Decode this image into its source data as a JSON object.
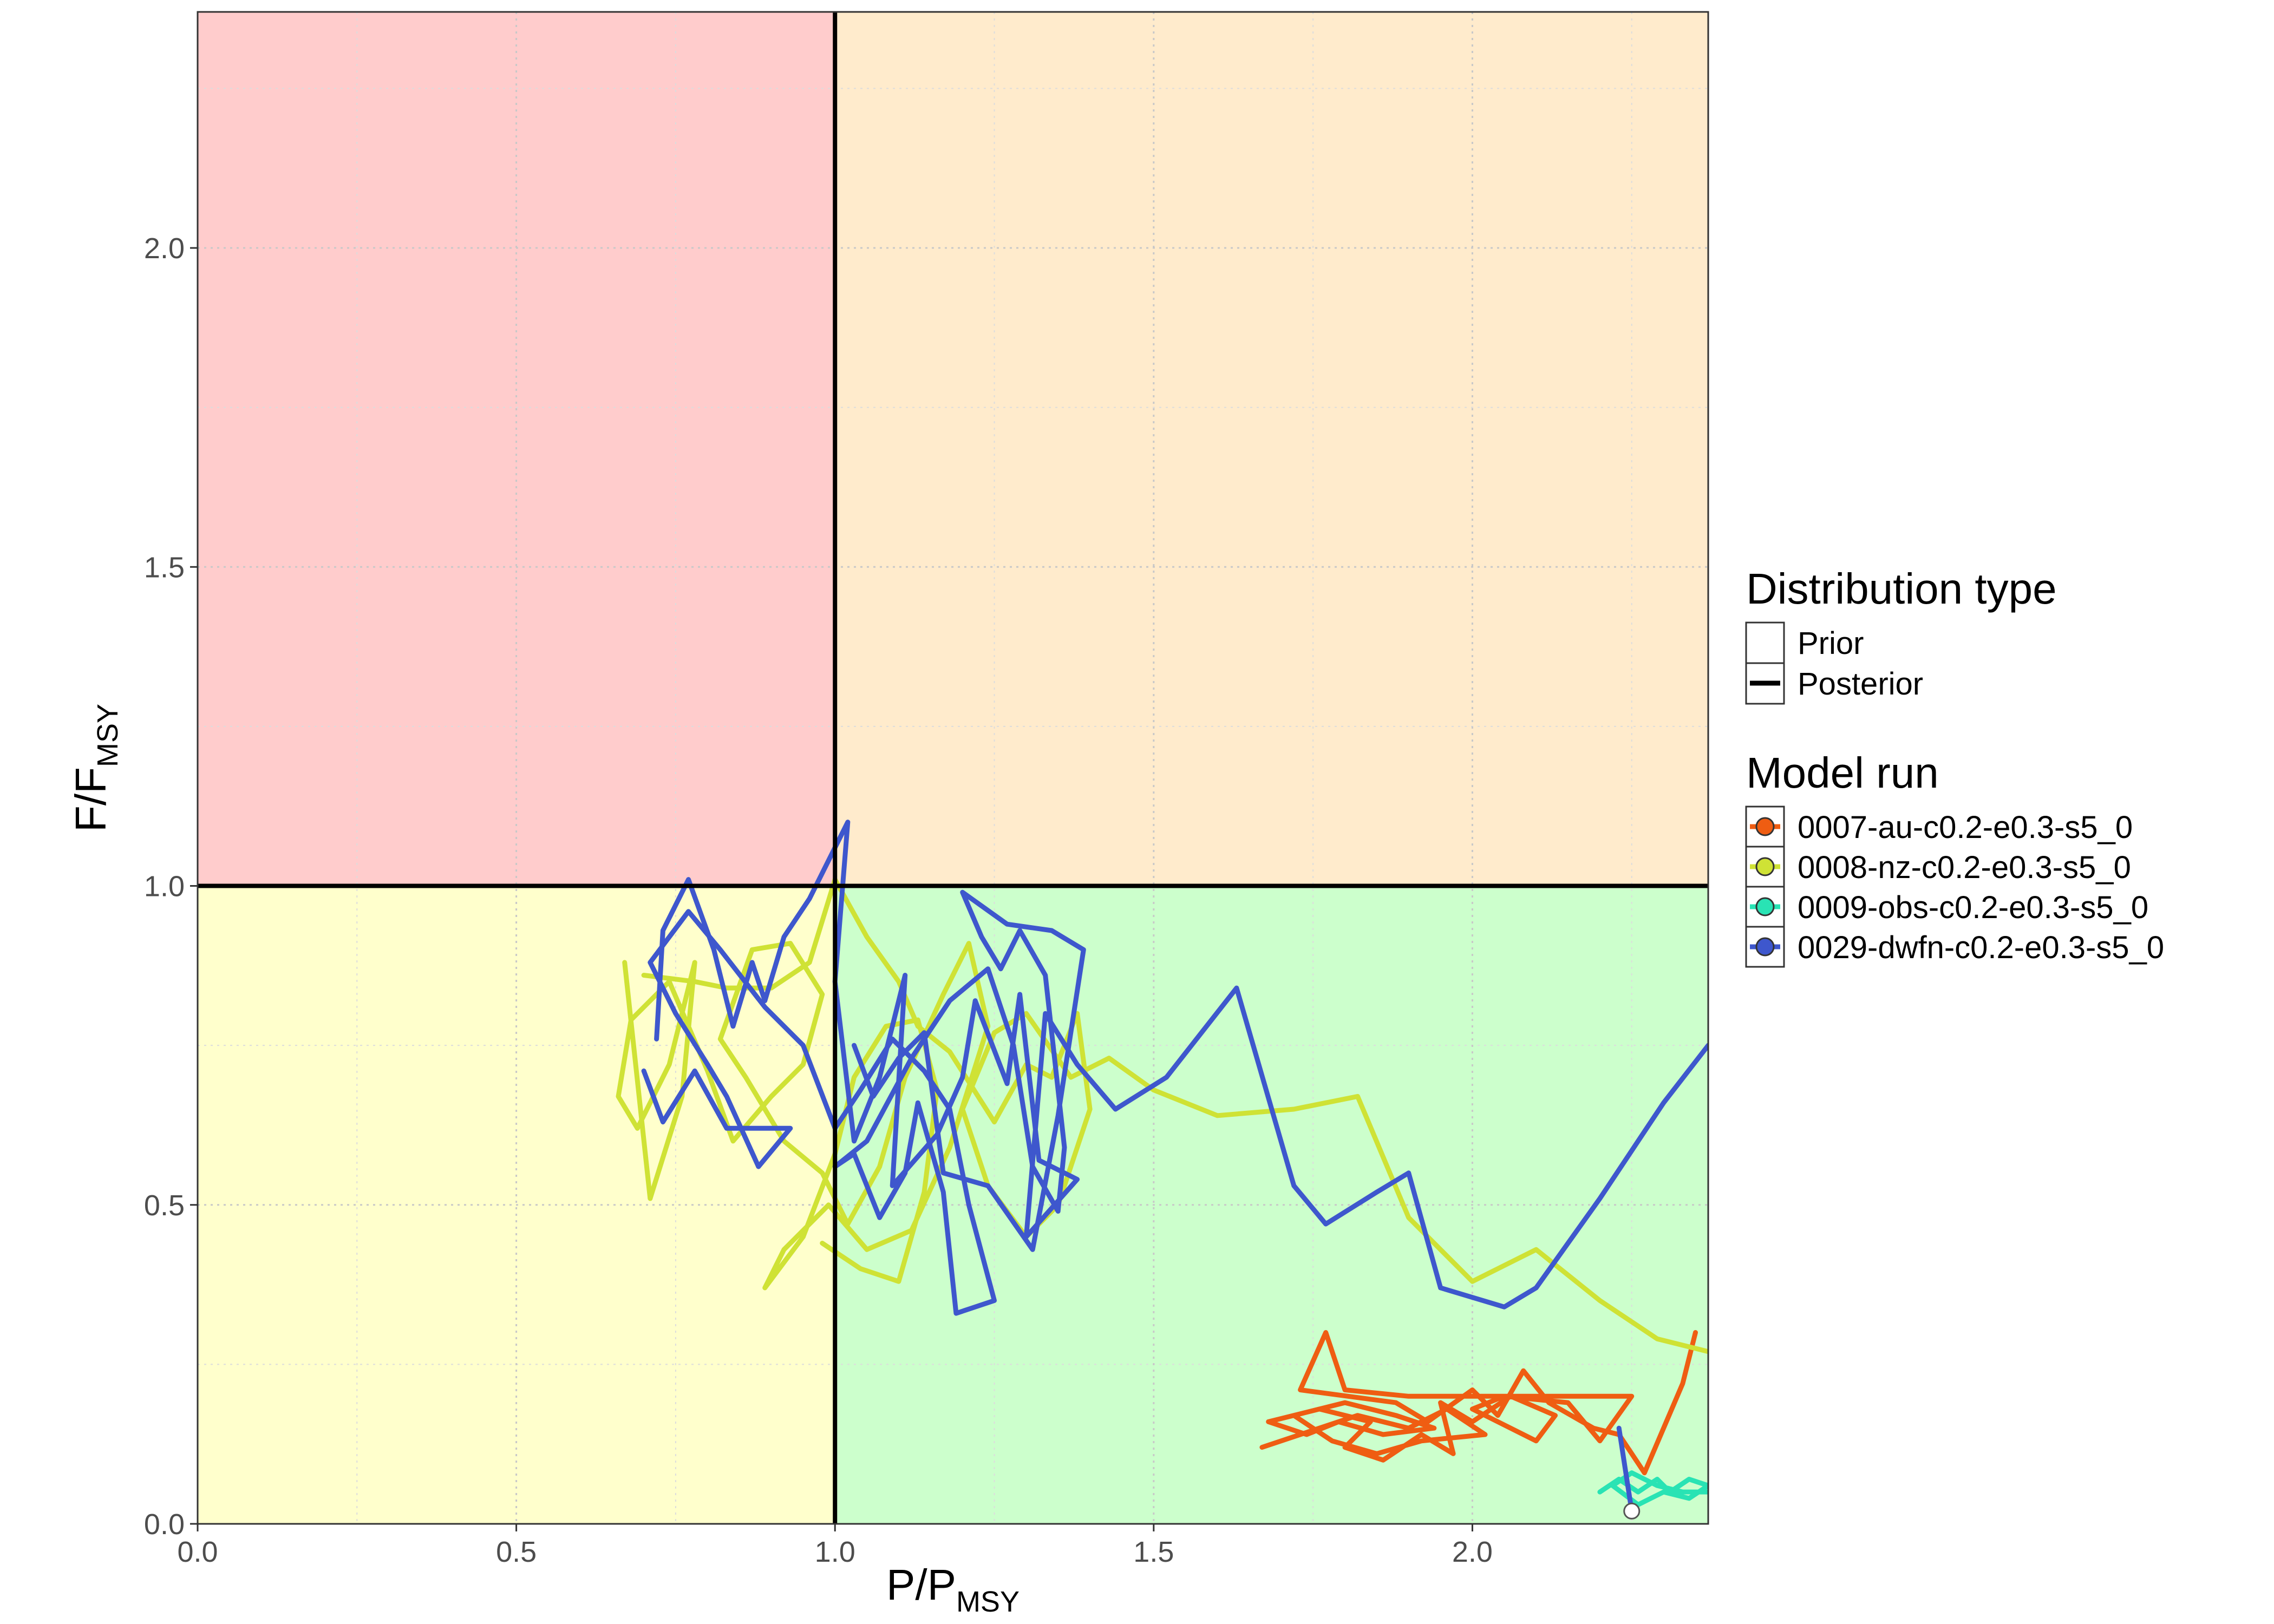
{
  "chart_data": {
    "type": "line",
    "title": "",
    "xlabel": {
      "main": "P",
      "sep": "/",
      "base": "P",
      "sub": "MSY"
    },
    "ylabel": {
      "main": "F",
      "sep": "/",
      "base": "F",
      "sub": "MSY"
    },
    "xlim": [
      0,
      2.37
    ],
    "ylim": [
      0,
      2.37
    ],
    "xticks": [
      0.0,
      0.5,
      1.0,
      1.5,
      2.0
    ],
    "yticks": [
      0.0,
      0.5,
      1.0,
      1.5,
      2.0
    ],
    "xtick_labels": [
      "0.0",
      "0.5",
      "1.0",
      "1.5",
      "2.0"
    ],
    "ytick_labels": [
      "0.0",
      "0.5",
      "1.0",
      "1.5",
      "2.0"
    ],
    "grid": true,
    "reference_lines": {
      "x": 1.0,
      "y": 1.0
    },
    "quadrants": [
      {
        "name": "overfished-overfishing",
        "x": [
          0,
          1
        ],
        "y": [
          1,
          2.37
        ],
        "color": "#ffcccc"
      },
      {
        "name": "overfishing",
        "x": [
          1,
          2.37
        ],
        "y": [
          1,
          2.37
        ],
        "color": "#ffebcc"
      },
      {
        "name": "overfished",
        "x": [
          0,
          1
        ],
        "y": [
          0,
          1
        ],
        "color": "#ffffcc"
      },
      {
        "name": "sustainable",
        "x": [
          1,
          2.37
        ],
        "y": [
          0,
          1
        ],
        "color": "#ccffcc"
      }
    ],
    "legend": {
      "position": "right",
      "distribution_title": "Distribution type",
      "distribution_items": [
        {
          "label": "Prior",
          "style": "thin"
        },
        {
          "label": "Posterior",
          "style": "thick"
        }
      ],
      "model_title": "Model run"
    },
    "series": [
      {
        "name": "0007-au-c0.2-e0.3-s5_0",
        "color": "#ef5d12",
        "points": [
          [
            1.67,
            0.12
          ],
          [
            1.76,
            0.15
          ],
          [
            1.82,
            0.17
          ],
          [
            1.9,
            0.15
          ],
          [
            1.96,
            0.18
          ],
          [
            2.02,
            0.14
          ],
          [
            1.92,
            0.13
          ],
          [
            1.85,
            0.11
          ],
          [
            1.78,
            0.13
          ],
          [
            1.72,
            0.17
          ],
          [
            1.8,
            0.19
          ],
          [
            1.88,
            0.17
          ],
          [
            1.94,
            0.15
          ],
          [
            1.86,
            0.14
          ],
          [
            1.79,
            0.16
          ],
          [
            1.74,
            0.14
          ],
          [
            1.68,
            0.16
          ],
          [
            1.76,
            0.18
          ],
          [
            1.84,
            0.16
          ],
          [
            1.8,
            0.12
          ],
          [
            1.86,
            0.1
          ],
          [
            1.92,
            0.14
          ],
          [
            1.97,
            0.11
          ],
          [
            1.95,
            0.19
          ],
          [
            2.0,
            0.16
          ],
          [
            2.06,
            0.2
          ],
          [
            2.13,
            0.17
          ],
          [
            2.1,
            0.13
          ],
          [
            2.0,
            0.18
          ],
          [
            2.05,
            0.2
          ],
          [
            2.15,
            0.19
          ],
          [
            2.2,
            0.13
          ],
          [
            2.25,
            0.2
          ],
          [
            1.9,
            0.2
          ],
          [
            1.8,
            0.21
          ],
          [
            1.77,
            0.3
          ],
          [
            1.73,
            0.21
          ],
          [
            1.88,
            0.19
          ],
          [
            1.93,
            0.16
          ],
          [
            2.0,
            0.21
          ],
          [
            2.04,
            0.17
          ],
          [
            2.08,
            0.24
          ],
          [
            2.12,
            0.19
          ],
          [
            2.19,
            0.15
          ],
          [
            2.23,
            0.14
          ],
          [
            2.27,
            0.08
          ],
          [
            2.33,
            0.22
          ],
          [
            2.35,
            0.3
          ]
        ]
      },
      {
        "name": "0008-nz-c0.2-e0.3-s5_0",
        "color": "#cfe235",
        "points": [
          [
            0.7,
            0.86
          ],
          [
            0.78,
            0.85
          ],
          [
            0.83,
            0.84
          ],
          [
            0.9,
            0.84
          ],
          [
            0.96,
            0.88
          ],
          [
            1.0,
            1.01
          ],
          [
            1.05,
            0.92
          ],
          [
            1.1,
            0.85
          ],
          [
            1.13,
            0.78
          ],
          [
            1.18,
            0.74
          ],
          [
            1.25,
            0.63
          ],
          [
            1.3,
            0.72
          ],
          [
            1.34,
            0.7
          ],
          [
            1.38,
            0.8
          ],
          [
            1.4,
            0.65
          ],
          [
            1.35,
            0.5
          ],
          [
            1.3,
            0.45
          ],
          [
            1.24,
            0.53
          ],
          [
            1.2,
            0.65
          ],
          [
            1.25,
            0.77
          ],
          [
            1.3,
            0.8
          ],
          [
            1.37,
            0.7
          ],
          [
            1.43,
            0.73
          ],
          [
            1.5,
            0.68
          ],
          [
            1.6,
            0.64
          ],
          [
            1.72,
            0.65
          ],
          [
            1.82,
            0.67
          ],
          [
            1.9,
            0.48
          ],
          [
            2.0,
            0.38
          ],
          [
            2.1,
            0.43
          ],
          [
            2.2,
            0.35
          ],
          [
            2.29,
            0.29
          ],
          [
            2.37,
            0.27
          ]
        ],
        "extra": [
          [
            0.67,
            0.88
          ],
          [
            0.71,
            0.51
          ],
          [
            0.76,
            0.67
          ],
          [
            0.78,
            0.88
          ],
          [
            0.74,
            0.72
          ],
          [
            0.69,
            0.62
          ],
          [
            0.66,
            0.67
          ],
          [
            0.68,
            0.79
          ],
          [
            0.74,
            0.85
          ],
          [
            0.8,
            0.71
          ],
          [
            0.84,
            0.6
          ],
          [
            0.9,
            0.67
          ],
          [
            0.95,
            0.72
          ],
          [
            0.98,
            0.83
          ],
          [
            0.93,
            0.91
          ],
          [
            0.87,
            0.9
          ],
          [
            0.82,
            0.76
          ],
          [
            0.86,
            0.7
          ],
          [
            0.92,
            0.6
          ],
          [
            0.98,
            0.55
          ],
          [
            1.02,
            0.47
          ],
          [
            1.07,
            0.56
          ],
          [
            1.11,
            0.7
          ],
          [
            1.17,
            0.83
          ],
          [
            1.21,
            0.91
          ],
          [
            1.24,
            0.78
          ],
          [
            1.18,
            0.59
          ],
          [
            1.12,
            0.46
          ],
          [
            1.05,
            0.43
          ],
          [
            0.99,
            0.5
          ],
          [
            0.92,
            0.43
          ],
          [
            0.89,
            0.37
          ],
          [
            0.95,
            0.45
          ],
          [
            1.0,
            0.58
          ],
          [
            1.03,
            0.7
          ],
          [
            1.08,
            0.78
          ],
          [
            1.13,
            0.79
          ],
          [
            1.16,
            0.68
          ],
          [
            1.14,
            0.52
          ],
          [
            1.1,
            0.38
          ],
          [
            1.04,
            0.4
          ],
          [
            0.98,
            0.44
          ]
        ]
      },
      {
        "name": "0009-obs-c0.2-e0.3-s5_0",
        "color": "#29e3b4",
        "points": [
          [
            2.2,
            0.05
          ],
          [
            2.23,
            0.07
          ],
          [
            2.26,
            0.05
          ],
          [
            2.29,
            0.07
          ],
          [
            2.31,
            0.05
          ],
          [
            2.34,
            0.07
          ],
          [
            2.37,
            0.06
          ],
          [
            2.34,
            0.04
          ],
          [
            2.3,
            0.05
          ],
          [
            2.26,
            0.03
          ],
          [
            2.22,
            0.06
          ],
          [
            2.25,
            0.08
          ],
          [
            2.29,
            0.06
          ],
          [
            2.33,
            0.05
          ],
          [
            2.37,
            0.05
          ]
        ]
      },
      {
        "name": "0029-dwfn-c0.2-e0.3-s5_0",
        "color": "#3e57cd",
        "points": [
          [
            0.72,
            0.76
          ],
          [
            0.73,
            0.93
          ],
          [
            0.77,
            1.01
          ],
          [
            0.81,
            0.9
          ],
          [
            0.84,
            0.78
          ],
          [
            0.87,
            0.88
          ],
          [
            0.89,
            0.82
          ],
          [
            0.92,
            0.92
          ],
          [
            0.96,
            0.98
          ],
          [
            1.0,
            1.06
          ],
          [
            1.02,
            1.1
          ],
          [
            1.0,
            0.85
          ],
          [
            1.03,
            0.6
          ],
          [
            1.07,
            0.7
          ],
          [
            1.11,
            0.86
          ],
          [
            1.09,
            0.53
          ],
          [
            1.16,
            0.61
          ],
          [
            1.2,
            0.7
          ],
          [
            1.22,
            0.82
          ],
          [
            1.27,
            0.69
          ],
          [
            1.29,
            0.83
          ],
          [
            1.32,
            0.57
          ],
          [
            1.38,
            0.54
          ],
          [
            1.3,
            0.45
          ],
          [
            1.33,
            0.8
          ],
          [
            1.38,
            0.72
          ],
          [
            1.44,
            0.65
          ],
          [
            1.52,
            0.7
          ],
          [
            1.63,
            0.84
          ],
          [
            1.72,
            0.53
          ],
          [
            1.77,
            0.47
          ],
          [
            1.85,
            0.52
          ],
          [
            1.9,
            0.55
          ],
          [
            1.95,
            0.37
          ],
          [
            2.05,
            0.34
          ],
          [
            2.1,
            0.37
          ],
          [
            2.2,
            0.51
          ],
          [
            2.3,
            0.66
          ],
          [
            2.37,
            0.75
          ]
        ],
        "extra": [
          [
            0.7,
            0.71
          ],
          [
            0.73,
            0.63
          ],
          [
            0.78,
            0.71
          ],
          [
            0.83,
            0.62
          ],
          [
            0.87,
            0.62
          ],
          [
            0.93,
            0.62
          ],
          [
            0.88,
            0.56
          ],
          [
            0.83,
            0.67
          ],
          [
            0.8,
            0.72
          ],
          [
            0.75,
            0.8
          ],
          [
            0.71,
            0.88
          ],
          [
            0.77,
            0.96
          ],
          [
            0.82,
            0.9
          ],
          [
            0.89,
            0.81
          ],
          [
            0.95,
            0.75
          ],
          [
            1.0,
            0.62
          ],
          [
            1.04,
            0.68
          ],
          [
            1.09,
            0.76
          ],
          [
            1.14,
            0.71
          ],
          [
            1.18,
            0.65
          ],
          [
            1.21,
            0.5
          ],
          [
            1.25,
            0.35
          ],
          [
            1.19,
            0.33
          ],
          [
            1.17,
            0.52
          ],
          [
            1.13,
            0.66
          ],
          [
            1.11,
            0.55
          ],
          [
            1.07,
            0.48
          ],
          [
            1.03,
            0.58
          ],
          [
            1.0,
            0.56
          ],
          [
            1.05,
            0.6
          ],
          [
            1.12,
            0.73
          ],
          [
            1.18,
            0.82
          ],
          [
            1.24,
            0.87
          ],
          [
            1.28,
            0.75
          ],
          [
            1.31,
            0.56
          ],
          [
            1.35,
            0.49
          ],
          [
            1.36,
            0.59
          ],
          [
            1.33,
            0.86
          ],
          [
            1.29,
            0.93
          ],
          [
            1.26,
            0.87
          ],
          [
            1.23,
            0.92
          ],
          [
            1.2,
            0.99
          ],
          [
            1.27,
            0.94
          ],
          [
            1.34,
            0.93
          ],
          [
            1.39,
            0.9
          ],
          [
            1.35,
            0.64
          ],
          [
            1.31,
            0.43
          ],
          [
            1.24,
            0.53
          ],
          [
            1.17,
            0.55
          ],
          [
            1.14,
            0.77
          ],
          [
            1.1,
            0.73
          ],
          [
            1.06,
            0.67
          ],
          [
            1.03,
            0.75
          ]
        ],
        "final_segment": [
          [
            2.23,
            0.15
          ],
          [
            2.25,
            0.02
          ]
        ]
      }
    ],
    "final_point": [
      2.25,
      0.02
    ]
  }
}
